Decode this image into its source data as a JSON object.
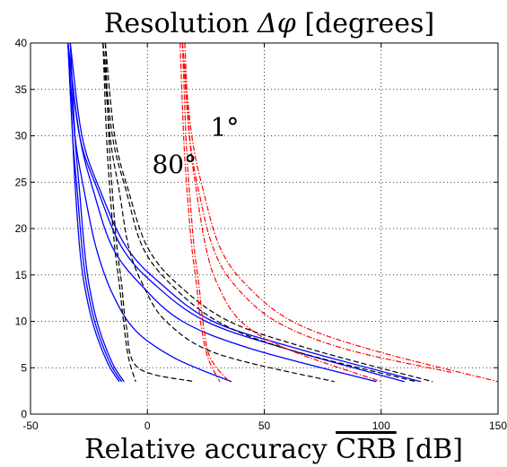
{
  "chart_data": {
    "type": "line",
    "title_prefix": "Resolution ",
    "title_symbol": "Δφ",
    "title_suffix": " [degrees]",
    "xlabel_prefix": "Relative accuracy ",
    "xlabel_overlined": "CRB",
    "xlabel_suffix": " [dB]",
    "xlim": [
      -50,
      150
    ],
    "ylim": [
      0,
      40
    ],
    "xticks": [
      -50,
      0,
      50,
      100,
      150
    ],
    "yticks": [
      0,
      5,
      10,
      15,
      20,
      25,
      30,
      35,
      40
    ],
    "grid": true,
    "annotations": [
      {
        "text": "1°",
        "x": 27,
        "y": 30
      },
      {
        "text": "80°",
        "x": 2,
        "y": 26
      }
    ],
    "series": [
      {
        "color": "#0000ff",
        "style": "solid",
        "x": [
          -34,
          -32,
          -31,
          -29,
          -27,
          -23,
          -17,
          -12
        ],
        "y": [
          40,
          30,
          25,
          18,
          14,
          9.5,
          5.5,
          3.5
        ]
      },
      {
        "color": "#0000ff",
        "style": "solid",
        "x": [
          -34,
          -32,
          -30,
          -28,
          -26,
          -22,
          -16,
          -11
        ],
        "y": [
          40,
          30,
          24,
          18,
          14,
          9.5,
          5.5,
          3.5
        ]
      },
      {
        "color": "#0000ff",
        "style": "solid",
        "x": [
          -33,
          -31,
          -29,
          -27,
          -25,
          -21,
          -15,
          -10
        ],
        "y": [
          40,
          30,
          24,
          18,
          14,
          9.5,
          5.5,
          3.5
        ]
      },
      {
        "color": "#0000ff",
        "style": "solid",
        "x": [
          -34,
          -31,
          -27,
          -22,
          -15,
          -5,
          12,
          36
        ],
        "y": [
          40,
          30,
          24,
          18,
          13,
          9,
          6,
          3.5
        ]
      },
      {
        "color": "#0000ff",
        "style": "solid",
        "x": [
          -34,
          -29,
          -23,
          -15,
          -3,
          15,
          45,
          98
        ],
        "y": [
          40,
          30,
          24,
          18,
          14,
          10,
          7,
          3.5
        ]
      },
      {
        "color": "#0000ff",
        "style": "solid",
        "x": [
          -34,
          -29,
          -21,
          -11,
          3,
          25,
          60,
          110
        ],
        "y": [
          40,
          30,
          24,
          18,
          14,
          10,
          7,
          3.5
        ]
      },
      {
        "color": "#0000ff",
        "style": "solid",
        "x": [
          -33,
          -28,
          -20,
          -9,
          6,
          28,
          65,
          117
        ],
        "y": [
          40,
          30,
          24,
          18,
          14,
          10,
          7,
          3.5
        ]
      },
      {
        "color": "#000000",
        "style": "dashed",
        "x": [
          -19,
          -17.5,
          -16,
          -14,
          -12,
          -10,
          -8,
          -5
        ],
        "y": [
          40,
          30,
          24,
          18,
          14,
          9.5,
          6,
          3.5
        ]
      },
      {
        "color": "#000000",
        "style": "dashed",
        "x": [
          -18,
          -16.5,
          -15,
          -13,
          -11,
          -9,
          -4,
          20
        ],
        "y": [
          40,
          30,
          24,
          18,
          14,
          9.5,
          5,
          3.5
        ]
      },
      {
        "color": "#000000",
        "style": "dashed",
        "x": [
          -19,
          -16,
          -12,
          -8,
          -2,
          8,
          30,
          80
        ],
        "y": [
          40,
          30,
          24,
          18,
          14,
          10,
          6.5,
          3.5
        ]
      },
      {
        "color": "#000000",
        "style": "dashed",
        "x": [
          -19,
          -15,
          -9,
          -2,
          10,
          30,
          60,
          115
        ],
        "y": [
          40,
          30,
          24,
          18,
          14,
          10,
          7,
          3.5
        ]
      },
      {
        "color": "#000000",
        "style": "dashed",
        "x": [
          -18,
          -14,
          -8,
          0,
          13,
          35,
          70,
          122
        ],
        "y": [
          40,
          30,
          24,
          18,
          14,
          10,
          7,
          3.5
        ]
      },
      {
        "color": "#ff0000",
        "style": "dashdot",
        "x": [
          14,
          15.5,
          17,
          19,
          21,
          23,
          26,
          31
        ],
        "y": [
          40,
          30,
          24,
          18,
          14,
          9.5,
          6,
          3.5
        ]
      },
      {
        "color": "#ff0000",
        "style": "dashdot",
        "x": [
          15,
          16.5,
          18,
          20,
          22,
          24,
          27,
          35
        ],
        "y": [
          40,
          30,
          24,
          18,
          14,
          9.5,
          6,
          3.5
        ]
      },
      {
        "color": "#ff0000",
        "style": "dashdot",
        "x": [
          16,
          18,
          21,
          25,
          30,
          40,
          60,
          100
        ],
        "y": [
          40,
          30,
          24,
          18,
          14,
          10,
          7,
          3.5
        ]
      },
      {
        "color": "#ff0000",
        "style": "dashdot",
        "x": [
          15,
          18,
          22,
          28,
          37,
          55,
          85,
          130
        ],
        "y": [
          40,
          30,
          24,
          18,
          14,
          10,
          7,
          4.5
        ]
      },
      {
        "color": "#ff0000",
        "style": "dashdot",
        "x": [
          15,
          19,
          24,
          31,
          42,
          62,
          95,
          150
        ],
        "y": [
          40,
          30,
          24,
          18,
          14,
          10,
          7,
          3.5
        ]
      }
    ]
  }
}
